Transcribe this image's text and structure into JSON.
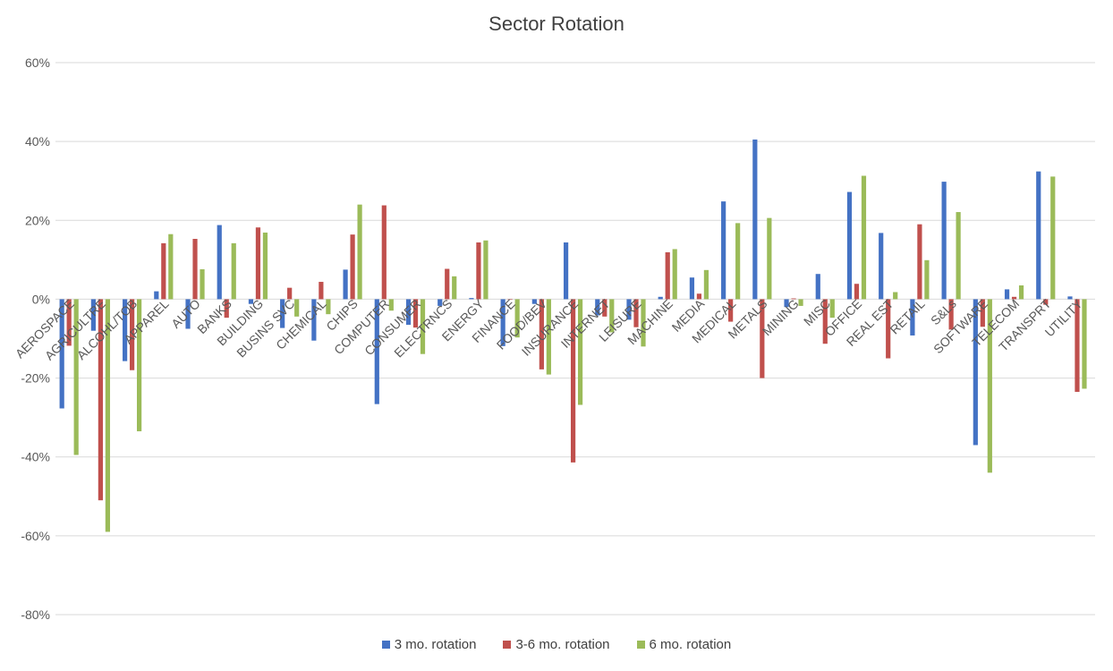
{
  "chart_data": {
    "type": "bar",
    "title": "Sector Rotation",
    "xlabel": "",
    "ylabel": "",
    "ylim": [
      -80,
      60
    ],
    "yticks": [
      "60%",
      "40%",
      "20%",
      "0%",
      "-20%",
      "-40%",
      "-60%",
      "-80%"
    ],
    "grid": true,
    "legend_position": "bottom",
    "categories": [
      "AEROSPACE",
      "AGRICULTRE",
      "ALCOHL/TOB",
      "APPAREL",
      "AUTO",
      "BANKS",
      "BUILDING",
      "BUSINS SVC",
      "CHEMICAL",
      "CHIPS",
      "COMPUTER",
      "CONSUMER",
      "ELECTRNCS",
      "ENERGY",
      "FINANCE",
      "FOOD/BEV",
      "INSURANCE",
      "INTERNET",
      "LEISURE",
      "MACHINE",
      "MEDIA",
      "MEDICAL",
      "METALS",
      "MINING",
      "MISC",
      "OFFICE",
      "REAL EST",
      "RETAIL",
      "S&Ls",
      "SOFTWARE",
      "TELECOM",
      "TRANSPRT",
      "UTILITY"
    ],
    "series": [
      {
        "name": "3 mo. rotation",
        "color": "#4472C4",
        "values": [
          -27.7,
          -8.0,
          -15.7,
          2.0,
          -7.5,
          18.8,
          -1.2,
          -7.3,
          -10.5,
          7.5,
          -26.6,
          -6.5,
          -1.7,
          0.3,
          -11.9,
          -1.2,
          14.4,
          -4.1,
          -5.2,
          0.6,
          5.5,
          24.8,
          40.5,
          -2.0,
          6.4,
          27.2,
          16.8,
          -9.2,
          29.8,
          -37.0,
          2.5,
          32.4,
          0.7
        ]
      },
      {
        "name": "3-6 mo. rotation",
        "color": "#C0504D",
        "values": [
          -11.8,
          -51.0,
          -18.0,
          14.2,
          15.3,
          -4.7,
          18.2,
          2.9,
          4.4,
          16.4,
          23.8,
          -7.2,
          7.7,
          14.4,
          0.0,
          -17.8,
          -41.4,
          -4.4,
          -7.1,
          11.9,
          1.4,
          -5.7,
          -20.0,
          0.2,
          -11.3,
          3.9,
          -15.0,
          19.0,
          -7.7,
          -7.0,
          0.6,
          -1.4,
          -23.5
        ]
      },
      {
        "name": "6 mo. rotation",
        "color": "#9BBB59",
        "values": [
          -39.5,
          -59.0,
          -33.5,
          16.5,
          7.6,
          14.2,
          16.9,
          -4.4,
          -3.8,
          24.0,
          -2.9,
          -13.9,
          5.8,
          14.9,
          -9.7,
          -19.1,
          -26.8,
          -8.4,
          -12.0,
          12.7,
          7.4,
          19.3,
          20.6,
          -1.7,
          -4.7,
          31.3,
          1.8,
          9.9,
          22.1,
          -44.0,
          3.5,
          31.1,
          -22.7
        ]
      }
    ]
  },
  "legend": {
    "items": [
      {
        "label": "3 mo. rotation",
        "color": "#4472C4"
      },
      {
        "label": "3-6 mo. rotation",
        "color": "#C0504D"
      },
      {
        "label": "6 mo. rotation",
        "color": "#9BBB59"
      }
    ]
  }
}
